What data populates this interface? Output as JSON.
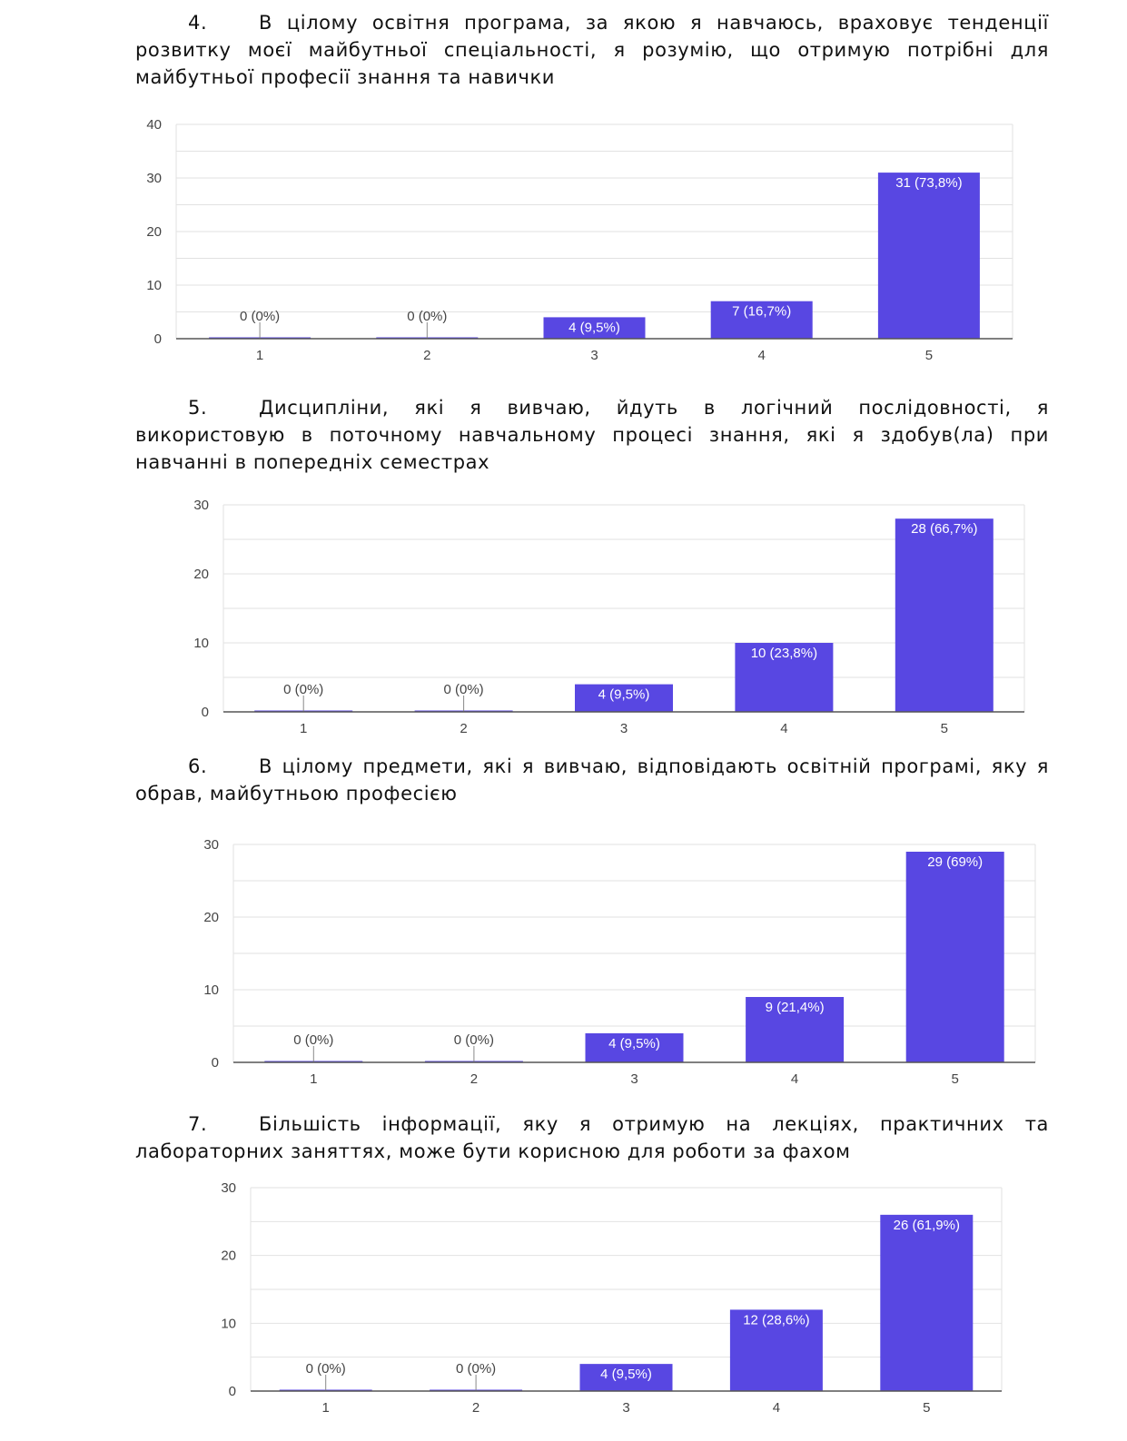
{
  "questions": [
    {
      "number": "4.",
      "text": "В цілому освітня програма, за якою я навчаюсь, враховує тенденції розвитку моєї майбутньої спеціальності, я розумію, що отримую потрібні для майбутньої професії знання та навички"
    },
    {
      "number": "5.",
      "text": "Дисципліни, які я вивчаю, йдуть в логічний послідовності, я використовую в поточному навчальному процесі знання, які я здобув(ла) при навчанні в попередніх семестрах"
    },
    {
      "number": "6.",
      "text": "В цілому предмети, які я вивчаю, відповідають освітній програмі, яку я обрав, майбутньою професією"
    },
    {
      "number": "7.",
      "text": "Більшість інформації, яку я отримую на лекціях, практичних та лабораторних заняттях, може бути корисною для роботи за фахом"
    }
  ],
  "colors": {
    "bar": "#5847e2",
    "grid": "#e2e2e2",
    "axis": "#555555",
    "label_inside": "#ffffff",
    "label_outside": "#444444"
  },
  "chart_data": [
    {
      "type": "bar",
      "categories": [
        "1",
        "2",
        "3",
        "4",
        "5"
      ],
      "values": [
        0,
        0,
        4,
        7,
        31
      ],
      "data_labels": [
        "0 (0%)",
        "0 (0%)",
        "4 (9,5%)",
        "7 (16,7%)",
        "31 (73,8%)"
      ],
      "yticks": [
        "0",
        "10",
        "20",
        "30",
        "40"
      ],
      "ylim": [
        0,
        40
      ],
      "grid": true
    },
    {
      "type": "bar",
      "categories": [
        "1",
        "2",
        "3",
        "4",
        "5"
      ],
      "values": [
        0,
        0,
        4,
        10,
        28
      ],
      "data_labels": [
        "0 (0%)",
        "0 (0%)",
        "4 (9,5%)",
        "10 (23,8%)",
        "28 (66,7%)"
      ],
      "yticks": [
        "0",
        "10",
        "20",
        "30"
      ],
      "ylim": [
        0,
        30
      ],
      "grid": true
    },
    {
      "type": "bar",
      "categories": [
        "1",
        "2",
        "3",
        "4",
        "5"
      ],
      "values": [
        0,
        0,
        4,
        9,
        29
      ],
      "data_labels": [
        "0 (0%)",
        "0 (0%)",
        "4 (9,5%)",
        "9 (21,4%)",
        "29 (69%)"
      ],
      "yticks": [
        "0",
        "10",
        "20",
        "30"
      ],
      "ylim": [
        0,
        30
      ],
      "grid": true
    },
    {
      "type": "bar",
      "categories": [
        "1",
        "2",
        "3",
        "4",
        "5"
      ],
      "values": [
        0,
        0,
        4,
        12,
        26
      ],
      "data_labels": [
        "0 (0%)",
        "0 (0%)",
        "4 (9,5%)",
        "12 (28,6%)",
        "26 (61,9%)"
      ],
      "yticks": [
        "0",
        "10",
        "20",
        "30"
      ],
      "ylim": [
        0,
        30
      ],
      "grid": true
    }
  ]
}
